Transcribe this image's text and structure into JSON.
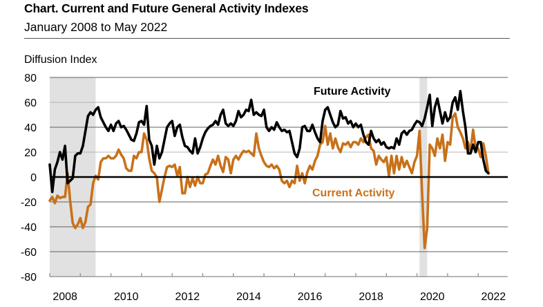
{
  "chart_data": {
    "type": "line",
    "title": "Chart. Current and Future General Activity Indexes",
    "subtitle": "January 2008 to May 2022",
    "xlabel": "",
    "ylabel": "Diffusion Index",
    "ylim": [
      -80,
      80
    ],
    "yticks": [
      80,
      60,
      40,
      20,
      0,
      -20,
      -40,
      -60,
      -80
    ],
    "xlim": [
      "2008-01",
      "2022-05"
    ],
    "xtick_labels": [
      "2008",
      "2010",
      "2012",
      "2014",
      "2016",
      "2018",
      "2020",
      "2022"
    ],
    "x_frequency": "monthly",
    "x_start": "2008-01",
    "grid": true,
    "recession_shading": [
      {
        "start": "2008-01",
        "end": "2009-06"
      },
      {
        "start": "2020-02",
        "end": "2020-04"
      }
    ],
    "colors": {
      "future": "#000000",
      "current": "#C8711A",
      "shading": "#E1E1E1"
    },
    "series": [
      {
        "name": "Future Activity",
        "label": "Future Activity",
        "values": [
          10,
          -12,
          6,
          12,
          20,
          14,
          25,
          -5,
          -3,
          -1,
          17,
          19,
          19,
          25,
          37,
          49,
          52,
          50,
          54,
          56,
          48,
          44,
          40,
          37,
          42,
          37,
          43,
          45,
          40,
          41,
          38,
          34,
          30,
          29,
          35,
          44,
          45,
          42,
          57,
          30,
          25,
          10,
          25,
          15,
          20,
          30,
          40,
          43,
          45,
          33,
          40,
          42,
          32,
          25,
          24,
          21,
          19,
          31,
          19,
          24,
          31,
          36,
          39,
          41,
          42,
          45,
          42,
          50,
          54,
          43,
          41,
          43,
          41,
          45,
          53,
          48,
          50,
          54,
          53,
          62,
          50,
          52,
          50,
          49,
          54,
          40,
          37,
          40,
          38,
          44,
          40,
          37,
          38,
          36,
          37,
          28,
          19,
          16,
          23,
          40,
          41,
          37,
          37,
          42,
          36,
          31,
          28,
          45,
          54,
          56,
          50,
          44,
          40,
          42,
          53,
          47,
          48,
          43,
          45,
          40,
          43,
          40,
          42,
          34,
          28,
          26,
          37,
          31,
          28,
          30,
          26,
          28,
          24,
          23,
          24,
          23,
          31,
          26,
          35,
          37,
          34,
          37,
          38,
          42,
          45,
          44,
          41,
          47,
          56,
          66,
          41,
          56,
          63,
          53,
          43,
          52,
          45,
          48,
          60,
          64,
          54,
          69,
          53,
          40,
          19,
          19,
          26,
          20,
          28,
          28,
          14,
          5,
          3
        ]
      },
      {
        "name": "Current Activity",
        "label": "Current Activity",
        "values": [
          -19,
          -16,
          -21,
          -15,
          -17,
          -16,
          -16,
          3,
          -19,
          -37,
          -41,
          -38,
          -33,
          -41,
          -36,
          -24,
          -22,
          -5,
          1,
          -2,
          12,
          15,
          15,
          17,
          15,
          15,
          17,
          22,
          18,
          15,
          7,
          5,
          5,
          17,
          15,
          20,
          20,
          35,
          30,
          15,
          5,
          3,
          0,
          -20,
          -10,
          0,
          8,
          9,
          8,
          10,
          1,
          8,
          -13,
          -13,
          0,
          -8,
          -1,
          -7,
          0,
          -5,
          -5,
          2,
          3,
          9,
          14,
          10,
          17,
          9,
          4,
          16,
          14,
          3,
          14,
          17,
          14,
          18,
          21,
          20,
          21,
          19,
          17,
          35,
          23,
          17,
          12,
          9,
          8,
          10,
          7,
          9,
          6,
          -3,
          -5,
          -3,
          -8,
          -3,
          -5,
          9,
          -3,
          3,
          -5,
          4,
          9,
          6,
          13,
          17,
          26,
          28,
          41,
          26,
          35,
          23,
          31,
          24,
          20,
          27,
          26,
          28,
          24,
          28,
          28,
          26,
          31,
          28,
          32,
          34,
          23,
          21,
          10,
          17,
          14,
          12,
          16,
          1,
          17,
          3,
          17,
          6,
          16,
          8,
          13,
          8,
          3,
          12,
          17,
          37,
          -13,
          -57,
          -41,
          26,
          23,
          17,
          31,
          23,
          34,
          13,
          28,
          26,
          48,
          51,
          40,
          36,
          31,
          23,
          28,
          21,
          38,
          23,
          23,
          16,
          27,
          17,
          3
        ]
      }
    ]
  }
}
